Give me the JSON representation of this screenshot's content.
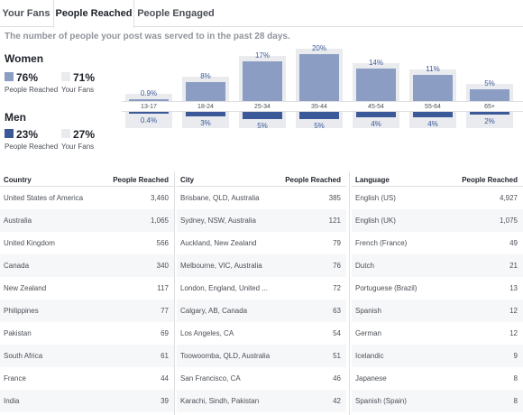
{
  "tabs": {
    "your_fans": "Your Fans",
    "people_reached": "People Reached",
    "people_engaged": "People Engaged"
  },
  "subtitle": "The number of people your post was served to in the past 28 days.",
  "women": {
    "title": "Women",
    "reached_pct": "76%",
    "reached_label": "People Reached",
    "fans_pct": "71%",
    "fans_label": "Your Fans"
  },
  "men": {
    "title": "Men",
    "reached_pct": "23%",
    "reached_label": "People Reached",
    "fans_pct": "27%",
    "fans_label": "Your Fans"
  },
  "colors": {
    "women": "#8b9dc3",
    "men": "#3b5998",
    "fans": "#e9ebee"
  },
  "chart_data": {
    "type": "bar",
    "categories": [
      "13-17",
      "18-24",
      "25-34",
      "35-44",
      "45-54",
      "55-64",
      "65+"
    ],
    "series": [
      {
        "name": "Women",
        "values": [
          0.9,
          8,
          17,
          20,
          14,
          11,
          5
        ],
        "labels": [
          "0.9%",
          "8%",
          "17%",
          "20%",
          "14%",
          "11%",
          "5%"
        ]
      },
      {
        "name": "Men",
        "values": [
          0.4,
          3,
          5,
          5,
          4,
          4,
          2
        ],
        "labels": [
          "0.4%",
          "3%",
          "5%",
          "5%",
          "4%",
          "4%",
          "2%"
        ]
      }
    ]
  },
  "tables": {
    "country": {
      "header": "Country",
      "value_header": "People Reached",
      "rows": [
        [
          "United States of America",
          "3,460"
        ],
        [
          "Australia",
          "1,065"
        ],
        [
          "United Kingdom",
          "566"
        ],
        [
          "Canada",
          "340"
        ],
        [
          "New Zealand",
          "117"
        ],
        [
          "Philippines",
          "77"
        ],
        [
          "Pakistan",
          "69"
        ],
        [
          "South Africa",
          "61"
        ],
        [
          "France",
          "44"
        ],
        [
          "India",
          "39"
        ]
      ]
    },
    "city": {
      "header": "City",
      "value_header": "People Reached",
      "rows": [
        [
          "Brisbane, QLD, Australia",
          "385"
        ],
        [
          "Sydney, NSW, Australia",
          "121"
        ],
        [
          "Auckland, New Zealand",
          "79"
        ],
        [
          "Melbourne, VIC, Australia",
          "76"
        ],
        [
          "London, England, United ...",
          "72"
        ],
        [
          "Calgary, AB, Canada",
          "63"
        ],
        [
          "Los Angeles, CA",
          "54"
        ],
        [
          "Toowoomba, QLD, Australia",
          "51"
        ],
        [
          "San Francisco, CA",
          "46"
        ],
        [
          "Karachi, Sindh, Pakistan",
          "42"
        ]
      ]
    },
    "language": {
      "header": "Language",
      "value_header": "People Reached",
      "rows": [
        [
          "English (US)",
          "4,927"
        ],
        [
          "English (UK)",
          "1,075"
        ],
        [
          "French (France)",
          "49"
        ],
        [
          "Dutch",
          "21"
        ],
        [
          "Portuguese (Brazil)",
          "13"
        ],
        [
          "Spanish",
          "12"
        ],
        [
          "German",
          "12"
        ],
        [
          "Icelandic",
          "9"
        ],
        [
          "Japanese",
          "8"
        ],
        [
          "Spanish (Spain)",
          "8"
        ]
      ]
    }
  }
}
